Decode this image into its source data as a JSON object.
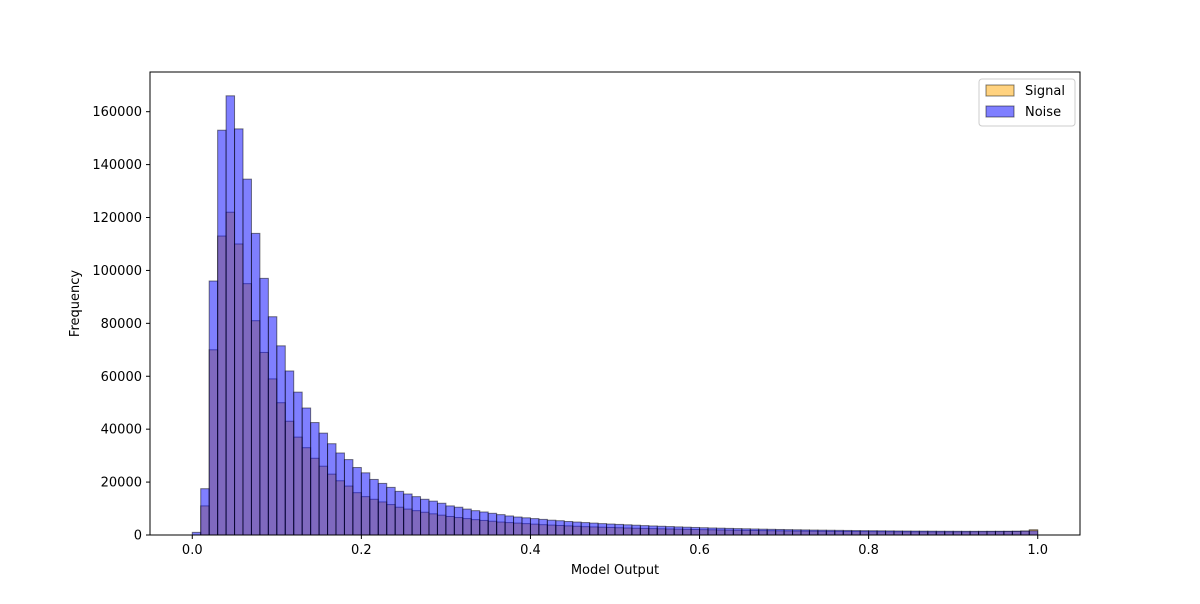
{
  "chart_data": {
    "type": "bar",
    "subtype": "overlaid-histogram",
    "title": "",
    "xlabel": "Model Output",
    "ylabel": "Frequency",
    "xlim": [
      -0.05,
      1.05
    ],
    "ylim": [
      0,
      175000
    ],
    "xticks": [
      0.0,
      0.2,
      0.4,
      0.6,
      0.8,
      1.0
    ],
    "xtick_labels": [
      "0.0",
      "0.2",
      "0.4",
      "0.6",
      "0.8",
      "1.0"
    ],
    "yticks": [
      0,
      20000,
      40000,
      60000,
      80000,
      100000,
      120000,
      140000,
      160000
    ],
    "ytick_labels": [
      "0",
      "20000",
      "40000",
      "60000",
      "80000",
      "100000",
      "120000",
      "140000",
      "160000"
    ],
    "bins": {
      "start": 0.0,
      "end": 1.0,
      "count": 100
    },
    "grid": false,
    "legend_position": "top-right",
    "series": [
      {
        "name": "Signal",
        "color": "#FFA500",
        "alpha": 0.5,
        "values": [
          0,
          11000,
          70000,
          113000,
          122000,
          110000,
          95000,
          81000,
          69000,
          59000,
          50000,
          43000,
          37000,
          33000,
          29000,
          26000,
          23000,
          20500,
          18500,
          16000,
          14500,
          13500,
          12500,
          11500,
          10500,
          9800,
          9200,
          8600,
          8000,
          7500,
          7000,
          6600,
          6200,
          5800,
          5500,
          5200,
          4900,
          4700,
          4500,
          4300,
          4100,
          3900,
          3750,
          3600,
          3450,
          3300,
          3150,
          3050,
          2950,
          2850,
          2750,
          2650,
          2550,
          2480,
          2410,
          2340,
          2270,
          2200,
          2140,
          2080,
          2020,
          1960,
          1900,
          1850,
          1800,
          1750,
          1700,
          1660,
          1620,
          1580,
          1540,
          1500,
          1470,
          1440,
          1410,
          1380,
          1350,
          1320,
          1300,
          1280,
          1260,
          1240,
          1220,
          1200,
          1190,
          1180,
          1170,
          1160,
          1160,
          1160,
          1170,
          1180,
          1200,
          1220,
          1240,
          1260,
          1300,
          1350,
          1500,
          2000
        ]
      },
      {
        "name": "Noise",
        "color": "#0000FF",
        "alpha": 0.5,
        "values": [
          1000,
          17500,
          96000,
          153000,
          166000,
          153500,
          134500,
          114000,
          97000,
          82500,
          71500,
          62000,
          54000,
          48000,
          42500,
          38500,
          34500,
          31000,
          28500,
          25500,
          23500,
          21000,
          19500,
          18000,
          16500,
          15500,
          14500,
          13500,
          12800,
          12000,
          11000,
          10500,
          9800,
          9200,
          8700,
          8200,
          7700,
          7200,
          6800,
          6500,
          6200,
          5900,
          5600,
          5400,
          5100,
          4900,
          4700,
          4500,
          4300,
          4150,
          4000,
          3850,
          3700,
          3550,
          3420,
          3300,
          3180,
          3060,
          2950,
          2850,
          2750,
          2660,
          2580,
          2500,
          2420,
          2350,
          2280,
          2210,
          2150,
          2090,
          2030,
          1980,
          1930,
          1880,
          1840,
          1800,
          1760,
          1720,
          1680,
          1650,
          1620,
          1590,
          1560,
          1530,
          1510,
          1490,
          1470,
          1450,
          1430,
          1420,
          1410,
          1400,
          1400,
          1400,
          1410,
          1420,
          1430,
          1450,
          1480,
          1600
        ]
      }
    ]
  }
}
